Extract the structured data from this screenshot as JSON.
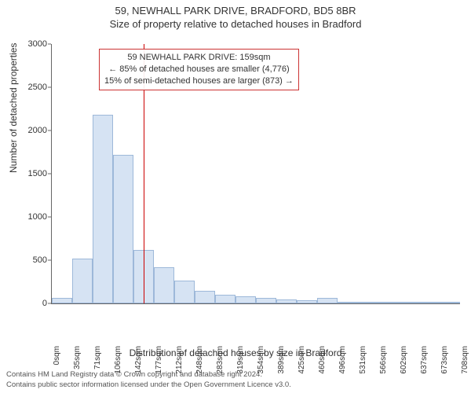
{
  "title": "59, NEWHALL PARK DRIVE, BRADFORD, BD5 8BR",
  "subtitle": "Size of property relative to detached houses in Bradford",
  "ylabel": "Number of detached properties",
  "xlabel": "Distribution of detached houses by size in Bradford",
  "footer_line1": "Contains HM Land Registry data © Crown copyright and database right 2024.",
  "footer_line2": "Contains public sector information licensed under the Open Government Licence v3.0.",
  "annotation": {
    "line1": "59 NEWHALL PARK DRIVE: 159sqm",
    "line2": "← 85% of detached houses are smaller (4,776)",
    "line3": "15% of semi-detached houses are larger (873) →"
  },
  "chart": {
    "type": "histogram",
    "bar_fill": "#d6e3f3",
    "bar_stroke": "#9db8d9",
    "marker_color": "#cc0000",
    "anno_border": "#cc3333",
    "background_color": "#ffffff",
    "axis_color": "#666666",
    "text_color": "#333333",
    "ylim": [
      0,
      3000
    ],
    "yticks": [
      0,
      500,
      1000,
      1500,
      2000,
      2500,
      3000
    ],
    "xtick_labels": [
      "0sqm",
      "35sqm",
      "71sqm",
      "106sqm",
      "142sqm",
      "177sqm",
      "212sqm",
      "248sqm",
      "283sqm",
      "319sqm",
      "354sqm",
      "389sqm",
      "425sqm",
      "460sqm",
      "496sqm",
      "531sqm",
      "566sqm",
      "602sqm",
      "637sqm",
      "673sqm",
      "708sqm"
    ],
    "bar_values": [
      60,
      520,
      2180,
      1720,
      620,
      420,
      260,
      150,
      100,
      80,
      60,
      50,
      40,
      60,
      5,
      5,
      3,
      3,
      3,
      3
    ],
    "marker_x_value": 159,
    "x_max": 708,
    "title_fontsize": 13,
    "label_fontsize": 12,
    "tick_fontsize": 11
  }
}
